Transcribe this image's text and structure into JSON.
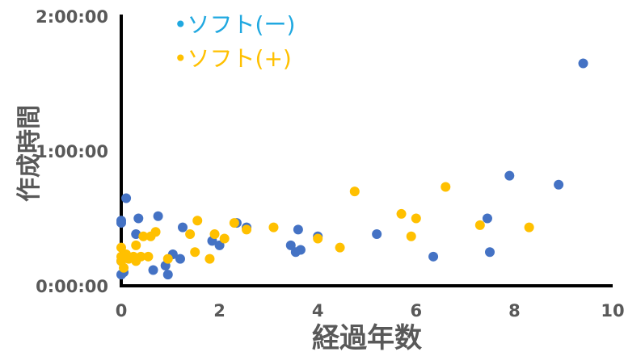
{
  "chart_data": {
    "type": "scatter",
    "xlabel": "経過年数",
    "ylabel": "作成時間",
    "xlim": [
      0,
      10
    ],
    "ylim": [
      0,
      120
    ],
    "x_ticks": [
      "0",
      "2",
      "4",
      "6",
      "8",
      "10"
    ],
    "y_ticks": [
      "0:00:00",
      "1:00:00",
      "2:00:00"
    ],
    "legend_placement": "top-left",
    "grid": false,
    "series": [
      {
        "name": "ソフト(ー)",
        "legend_label": "•ソフト(ー)",
        "color": "#4472c4",
        "legend_color": "#20a8e0",
        "points": [
          [
            0.0,
            29
          ],
          [
            0.0,
            28
          ],
          [
            0.1,
            39
          ],
          [
            0.0,
            11
          ],
          [
            0.05,
            6
          ],
          [
            0.0,
            5
          ],
          [
            0.3,
            23
          ],
          [
            0.35,
            30
          ],
          [
            0.75,
            31
          ],
          [
            0.65,
            7
          ],
          [
            0.9,
            9
          ],
          [
            1.05,
            14
          ],
          [
            0.95,
            5
          ],
          [
            1.2,
            12
          ],
          [
            1.25,
            26
          ],
          [
            1.85,
            20
          ],
          [
            2.0,
            18
          ],
          [
            2.35,
            28
          ],
          [
            2.55,
            26
          ],
          [
            3.45,
            18
          ],
          [
            3.55,
            15
          ],
          [
            3.6,
            25
          ],
          [
            3.65,
            16
          ],
          [
            4.0,
            22
          ],
          [
            5.2,
            23
          ],
          [
            6.35,
            13
          ],
          [
            7.45,
            30
          ],
          [
            7.5,
            15
          ],
          [
            7.9,
            49
          ],
          [
            8.9,
            45
          ],
          [
            9.4,
            99
          ]
        ]
      },
      {
        "name": "ソフト(+)",
        "legend_label": "•ソフト(+)",
        "color": "#ffc000",
        "legend_color": "#ffc000",
        "points": [
          [
            0.0,
            17
          ],
          [
            0.0,
            13
          ],
          [
            0.05,
            8
          ],
          [
            0.0,
            11
          ],
          [
            0.1,
            14
          ],
          [
            0.15,
            12
          ],
          [
            0.25,
            13
          ],
          [
            0.3,
            11
          ],
          [
            0.3,
            18
          ],
          [
            0.4,
            13
          ],
          [
            0.45,
            22
          ],
          [
            0.55,
            13
          ],
          [
            0.6,
            22
          ],
          [
            0.7,
            24
          ],
          [
            0.95,
            12
          ],
          [
            1.4,
            23
          ],
          [
            1.5,
            15
          ],
          [
            1.55,
            29
          ],
          [
            1.8,
            12
          ],
          [
            1.9,
            23
          ],
          [
            2.1,
            21
          ],
          [
            2.3,
            28
          ],
          [
            2.55,
            25
          ],
          [
            3.1,
            26
          ],
          [
            4.0,
            21
          ],
          [
            4.45,
            17
          ],
          [
            4.75,
            42
          ],
          [
            5.7,
            32
          ],
          [
            5.9,
            22
          ],
          [
            6.0,
            30
          ],
          [
            6.6,
            44
          ],
          [
            7.3,
            27
          ],
          [
            8.3,
            26
          ]
        ]
      }
    ]
  }
}
